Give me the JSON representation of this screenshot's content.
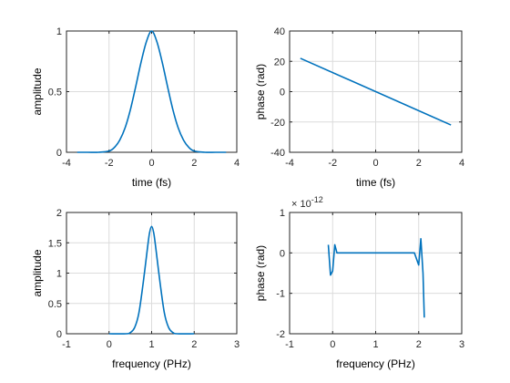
{
  "colors": {
    "series": "#0072BD",
    "axes": "#262626",
    "grid": "#dcdcdc"
  },
  "chart_data": [
    {
      "id": "time-amplitude",
      "type": "line",
      "xlabel": "time (fs)",
      "ylabel": "amplitude",
      "xlim": [
        -4,
        4
      ],
      "ylim": [
        0,
        1
      ],
      "xticks": [
        -4,
        -2,
        0,
        2,
        4
      ],
      "xtick_labels": [
        "-4",
        "-2",
        "0",
        "2",
        "4"
      ],
      "yticks": [
        0,
        0.5,
        1
      ],
      "ytick_labels": [
        "0",
        "0.5",
        "1"
      ],
      "grid": true,
      "exponent_label": "",
      "series": [
        {
          "x": [
            -3.5,
            -3.0,
            -2.5,
            -2.0,
            -1.75,
            -1.5,
            -1.25,
            -1.0,
            -0.75,
            -0.5,
            -0.25,
            0,
            0.25,
            0.5,
            0.75,
            1.0,
            1.25,
            1.5,
            1.75,
            2.0,
            2.5,
            3.0,
            3.5
          ],
          "y": [
            0.0,
            0.0,
            0.0,
            0.01,
            0.04,
            0.1,
            0.2,
            0.35,
            0.54,
            0.74,
            0.91,
            1.0,
            0.91,
            0.74,
            0.54,
            0.35,
            0.2,
            0.1,
            0.04,
            0.01,
            0.0,
            0.0,
            0.0
          ]
        }
      ]
    },
    {
      "id": "time-phase",
      "type": "line",
      "xlabel": "time (fs)",
      "ylabel": "phase (rad)",
      "xlim": [
        -4,
        4
      ],
      "ylim": [
        -40,
        40
      ],
      "xticks": [
        -4,
        -2,
        0,
        2,
        4
      ],
      "xtick_labels": [
        "-4",
        "-2",
        "0",
        "2",
        "4"
      ],
      "yticks": [
        -40,
        -20,
        0,
        20,
        40
      ],
      "ytick_labels": [
        "-40",
        "-20",
        "0",
        "20",
        "40"
      ],
      "grid": true,
      "exponent_label": "",
      "series": [
        {
          "x": [
            -3.5,
            3.5
          ],
          "y": [
            22,
            -22
          ]
        }
      ]
    },
    {
      "id": "frequency-amplitude",
      "type": "line",
      "xlabel": "frequency (PHz)",
      "ylabel": "amplitude",
      "xlim": [
        -1,
        3
      ],
      "ylim": [
        0,
        2
      ],
      "xticks": [
        -1,
        0,
        1,
        2,
        3
      ],
      "xtick_labels": [
        "-1",
        "0",
        "1",
        "2",
        "3"
      ],
      "yticks": [
        0,
        0.5,
        1,
        1.5,
        2
      ],
      "ytick_labels": [
        "0",
        "0.5",
        "1",
        "1.5",
        "2"
      ],
      "grid": true,
      "exponent_label": "",
      "series": [
        {
          "x": [
            0.0,
            0.4,
            0.5,
            0.6,
            0.7,
            0.8,
            0.9,
            0.95,
            1.0,
            1.05,
            1.1,
            1.2,
            1.3,
            1.4,
            1.5,
            1.6,
            2.0
          ],
          "y": [
            0.0,
            0.0,
            0.02,
            0.1,
            0.34,
            0.83,
            1.4,
            1.66,
            1.77,
            1.66,
            1.4,
            0.83,
            0.34,
            0.1,
            0.02,
            0.0,
            0.0
          ]
        }
      ]
    },
    {
      "id": "frequency-phase",
      "type": "line",
      "xlabel": "frequency (PHz)",
      "ylabel": "phase (rad)",
      "xlim": [
        -1,
        3
      ],
      "ylim": [
        -2,
        1
      ],
      "xticks": [
        -1,
        0,
        1,
        2,
        3
      ],
      "xtick_labels": [
        "-1",
        "0",
        "1",
        "2",
        "3"
      ],
      "yticks": [
        -2,
        -1,
        0,
        1
      ],
      "ytick_labels": [
        "-2",
        "-1",
        "0",
        "1"
      ],
      "grid": true,
      "exponent_label": "× 10",
      "exponent_power": "-12",
      "series": [
        {
          "x": [
            -0.1,
            -0.05,
            0.0,
            0.05,
            0.1,
            0.2,
            0.5,
            1.0,
            1.5,
            1.9,
            2.0,
            2.05,
            2.1,
            2.13
          ],
          "y": [
            0.2,
            -0.55,
            -0.45,
            0.2,
            0.0,
            0.0,
            0.0,
            0.0,
            0.0,
            0.0,
            -0.3,
            0.35,
            -0.5,
            -1.6
          ]
        }
      ]
    }
  ]
}
